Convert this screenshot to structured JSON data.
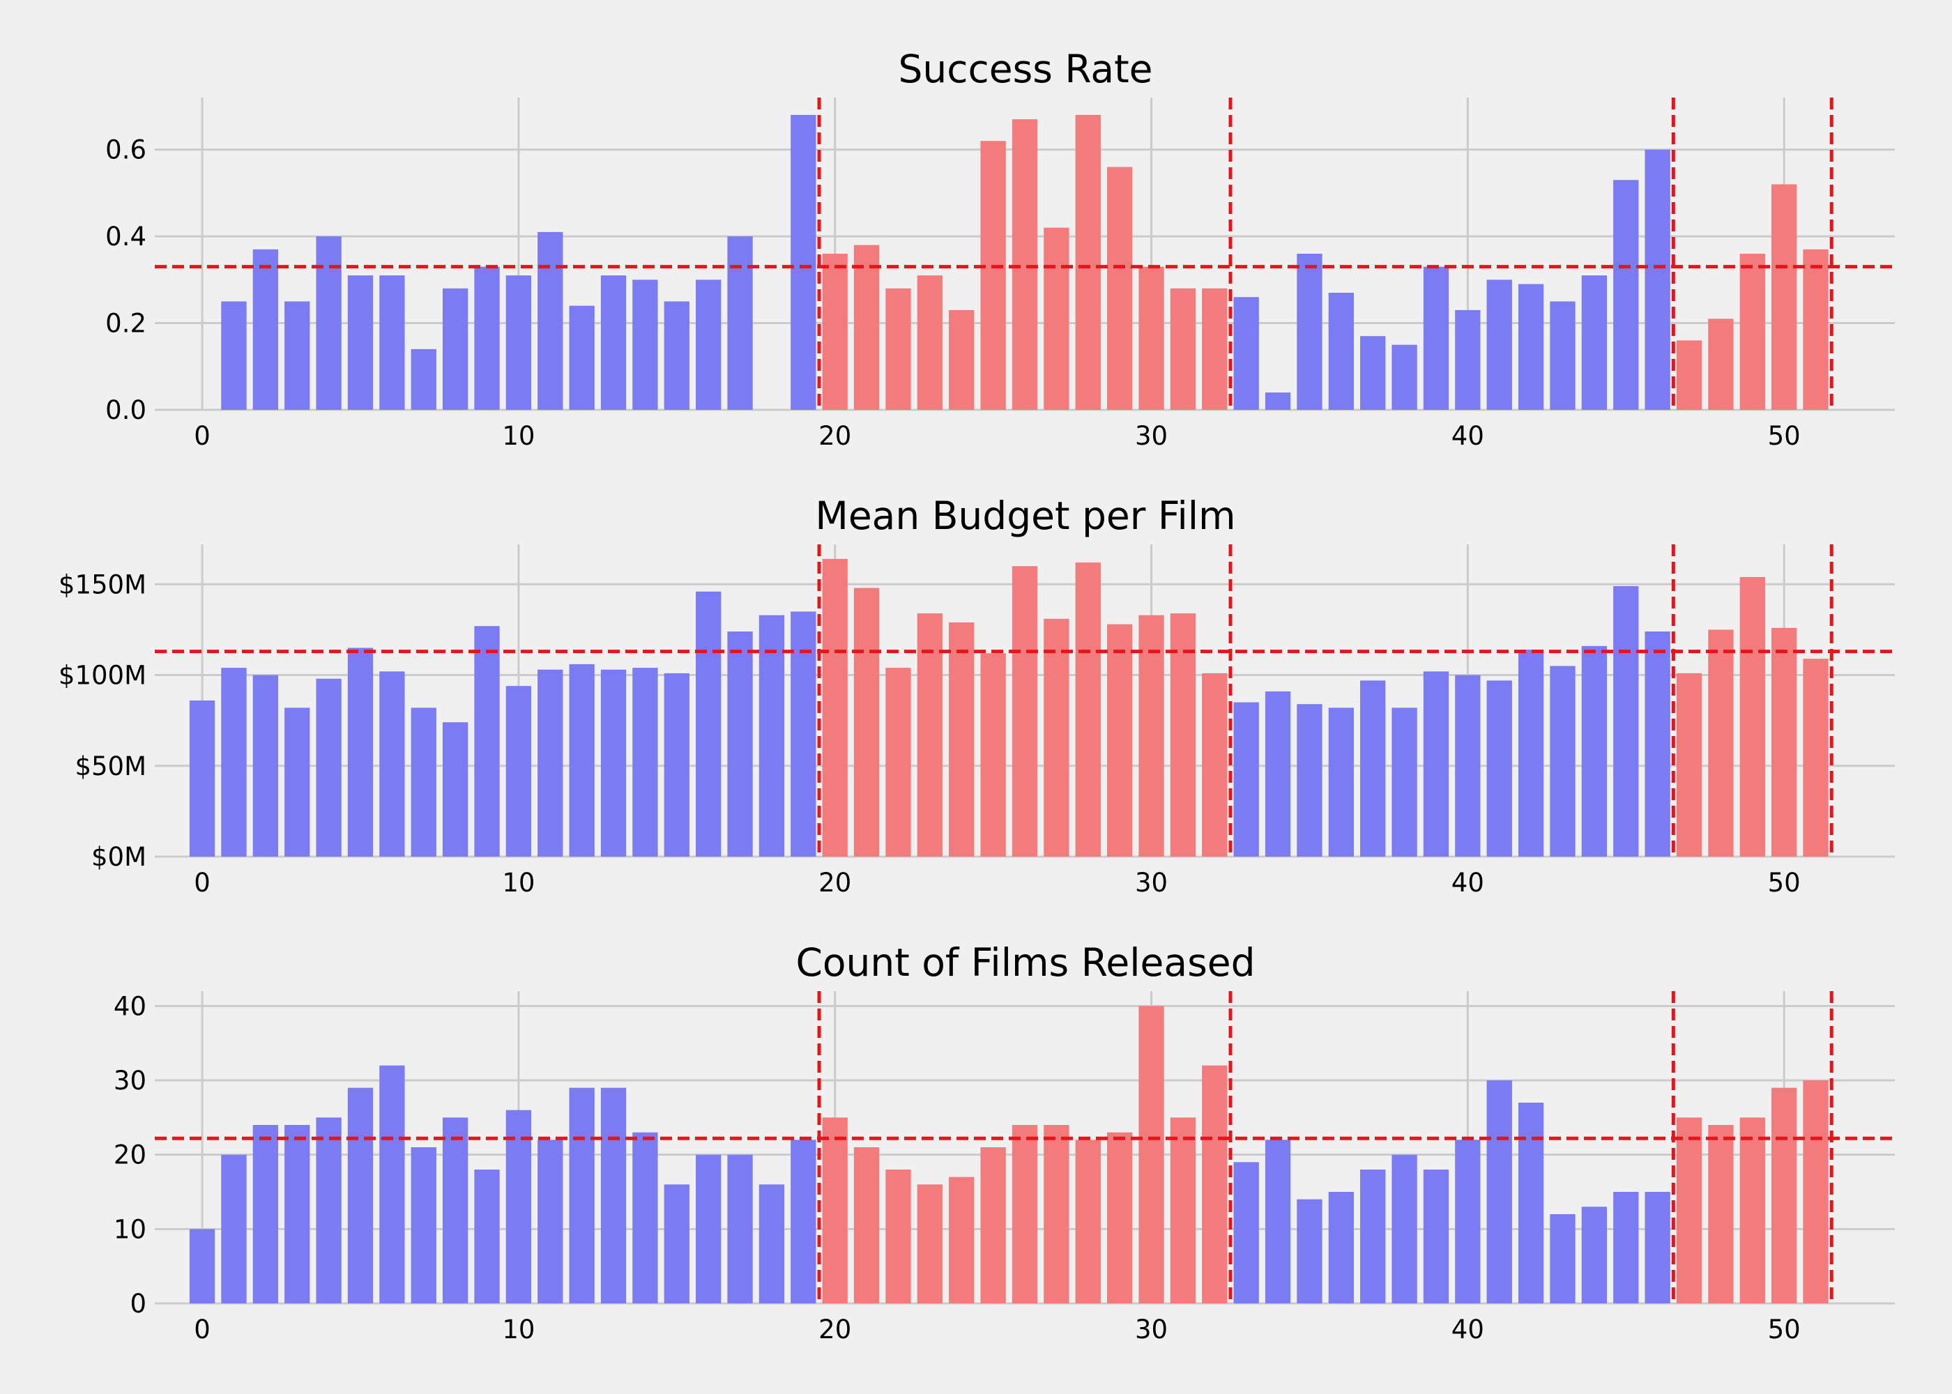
{
  "colors": {
    "period_a": "#7b7bf4",
    "period_b": "#f47b7b",
    "reference": "#e8141b",
    "background": "#f0f0f0",
    "grid": "#cbcbcb"
  },
  "chart_data": [
    {
      "type": "bar",
      "title": "Success Rate",
      "x": [
        1,
        2,
        3,
        4,
        5,
        6,
        7,
        8,
        9,
        10,
        11,
        12,
        13,
        14,
        15,
        16,
        17,
        19,
        20,
        21,
        22,
        23,
        24,
        25,
        26,
        27,
        28,
        29,
        30,
        31,
        32,
        33,
        34,
        35,
        36,
        37,
        38,
        39,
        40,
        41,
        42,
        43,
        44,
        45,
        46,
        47,
        48,
        49,
        50,
        51
      ],
      "values": [
        0.25,
        0.37,
        0.25,
        0.4,
        0.31,
        0.31,
        0.14,
        0.28,
        0.33,
        0.31,
        0.41,
        0.24,
        0.31,
        0.3,
        0.25,
        0.3,
        0.4,
        0.68,
        0.36,
        0.38,
        0.28,
        0.31,
        0.23,
        0.62,
        0.67,
        0.42,
        0.68,
        0.56,
        0.33,
        0.28,
        0.28,
        0.26,
        0.04,
        0.36,
        0.27,
        0.17,
        0.15,
        0.33,
        0.23,
        0.3,
        0.29,
        0.25,
        0.31,
        0.53,
        0.6,
        0.16,
        0.21,
        0.36,
        0.52,
        0.37
      ],
      "ylim": [
        0,
        0.72
      ],
      "yticks": [
        0.0,
        0.2,
        0.4,
        0.6
      ],
      "ytick_labels": [
        "0.0",
        "0.2",
        "0.4",
        "0.6"
      ],
      "xticks": [
        0,
        10,
        20,
        30,
        40,
        50
      ],
      "xtick_labels": [
        "0",
        "10",
        "20",
        "30",
        "40",
        "50"
      ],
      "xlim": [
        -1.5,
        53.5
      ],
      "mean_line": 0.33,
      "period_boundaries": [
        19.5,
        32.5,
        46.5,
        51.5
      ],
      "grid": true
    },
    {
      "type": "bar",
      "title": "Mean Budget per Film",
      "x": [
        0,
        1,
        2,
        3,
        4,
        5,
        6,
        7,
        8,
        9,
        10,
        11,
        12,
        13,
        14,
        15,
        16,
        17,
        18,
        19,
        20,
        21,
        22,
        23,
        24,
        25,
        26,
        27,
        28,
        29,
        30,
        31,
        32,
        33,
        34,
        35,
        36,
        37,
        38,
        39,
        40,
        41,
        42,
        43,
        44,
        45,
        46,
        47,
        48,
        49,
        50,
        51
      ],
      "values": [
        86,
        104,
        100,
        82,
        98,
        115,
        102,
        82,
        74,
        127,
        94,
        103,
        106,
        103,
        104,
        101,
        146,
        124,
        133,
        135,
        164,
        148,
        104,
        134,
        129,
        112,
        160,
        131,
        162,
        128,
        133,
        134,
        101,
        85,
        91,
        84,
        82,
        97,
        82,
        102,
        100,
        97,
        114,
        105,
        116,
        149,
        124,
        101,
        125,
        154,
        126,
        109
      ],
      "unit": "$M",
      "ylim": [
        0,
        172
      ],
      "yticks": [
        0,
        50,
        100,
        150
      ],
      "ytick_labels": [
        "$0M",
        "$50M",
        "$100M",
        "$150M"
      ],
      "xticks": [
        0,
        10,
        20,
        30,
        40,
        50
      ],
      "xtick_labels": [
        "0",
        "10",
        "20",
        "30",
        "40",
        "50"
      ],
      "xlim": [
        -1.5,
        53.5
      ],
      "mean_line": 113,
      "period_boundaries": [
        19.5,
        32.5,
        46.5,
        51.5
      ],
      "grid": true
    },
    {
      "type": "bar",
      "title": "Count of Films Released",
      "x": [
        0,
        1,
        2,
        3,
        4,
        5,
        6,
        7,
        8,
        9,
        10,
        11,
        12,
        13,
        14,
        15,
        16,
        17,
        18,
        19,
        20,
        21,
        22,
        23,
        24,
        25,
        26,
        27,
        28,
        29,
        30,
        31,
        32,
        33,
        34,
        35,
        36,
        37,
        38,
        39,
        40,
        41,
        42,
        43,
        44,
        45,
        46,
        47,
        48,
        49,
        50,
        51
      ],
      "values": [
        10,
        20,
        24,
        24,
        25,
        29,
        32,
        21,
        25,
        18,
        26,
        22,
        29,
        29,
        23,
        16,
        20,
        20,
        16,
        22,
        25,
        21,
        18,
        16,
        17,
        21,
        24,
        24,
        22,
        23,
        40,
        25,
        32,
        19,
        22,
        14,
        15,
        18,
        20,
        18,
        22,
        30,
        27,
        12,
        13,
        15,
        15,
        25,
        24,
        25,
        29,
        30
      ],
      "ylim": [
        0,
        42
      ],
      "yticks": [
        0,
        10,
        20,
        30,
        40
      ],
      "ytick_labels": [
        "0",
        "10",
        "20",
        "30",
        "40"
      ],
      "xticks": [
        0,
        10,
        20,
        30,
        40,
        50
      ],
      "xtick_labels": [
        "0",
        "10",
        "20",
        "30",
        "40",
        "50"
      ],
      "xlim": [
        -1.5,
        53.5
      ],
      "mean_line": 22.2,
      "period_boundaries": [
        19.5,
        32.5,
        46.5,
        51.5
      ],
      "grid": true
    }
  ]
}
